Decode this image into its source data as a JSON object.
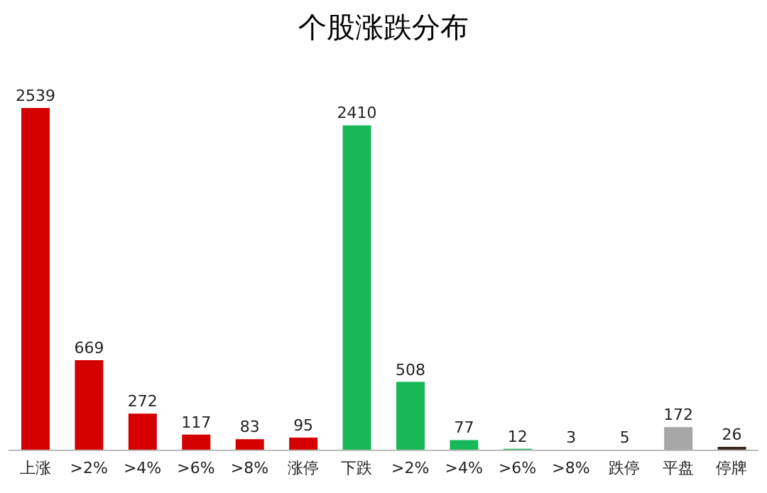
{
  "chart_data": {
    "type": "bar",
    "title": "个股涨跌分布",
    "categories": [
      "上涨",
      ">2%",
      ">4%",
      ">6%",
      ">8%",
      "涨停",
      "下跌",
      ">2%",
      ">4%",
      ">6%",
      ">8%",
      "跌停",
      "平盘",
      "停牌"
    ],
    "values": [
      2539,
      669,
      272,
      117,
      83,
      95,
      2410,
      508,
      77,
      12,
      3,
      5,
      172,
      26
    ],
    "colors": [
      "#d40000",
      "#d40000",
      "#d40000",
      "#d40000",
      "#d40000",
      "#d40000",
      "#18b85a",
      "#18b85a",
      "#18b85a",
      "#18b85a",
      "#18b85a",
      "#18b85a",
      "#a6a6a6",
      "#3a2a20"
    ],
    "data_labels": true,
    "grid": false,
    "legend": false
  }
}
